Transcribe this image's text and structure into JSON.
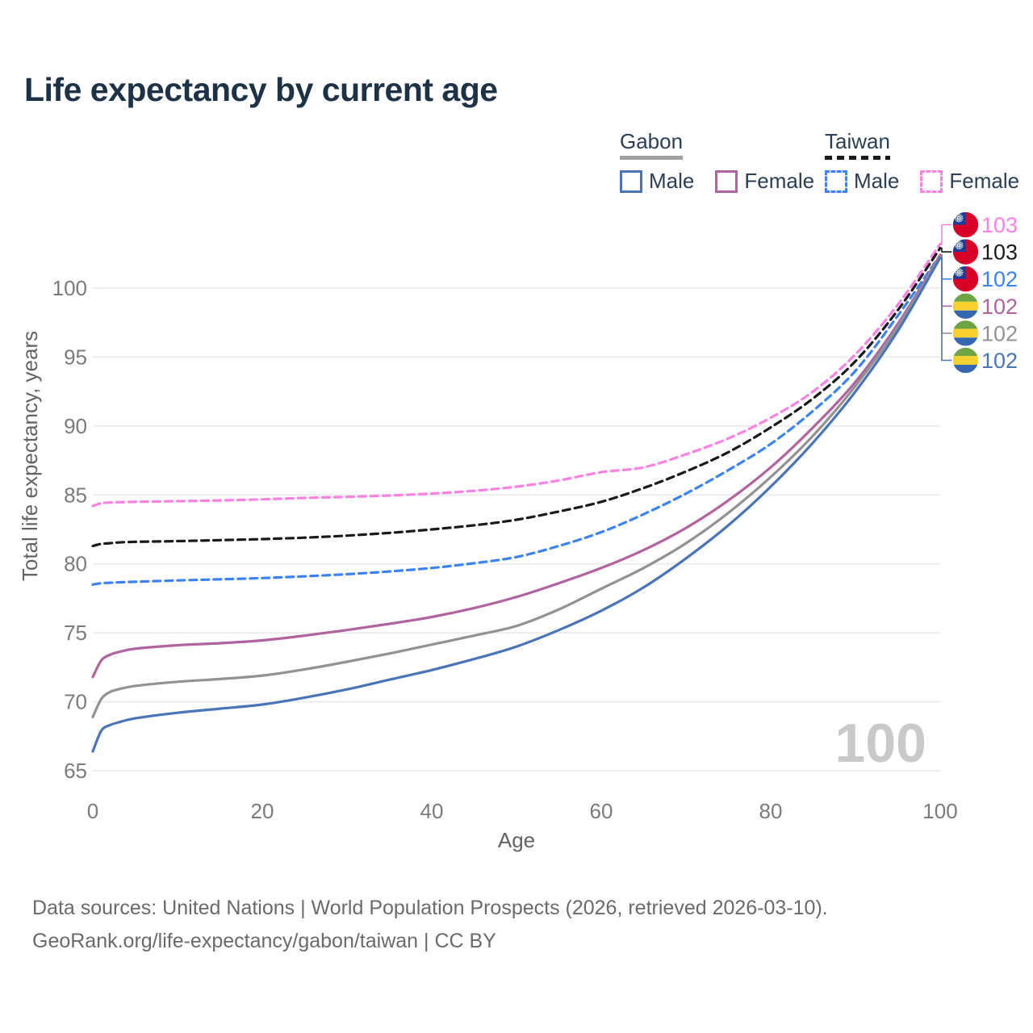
{
  "title": "Life expectancy by current age",
  "legend": {
    "groups": [
      {
        "id": "gabon",
        "label": "Gabon",
        "line_style": "solid",
        "line_color": "#a1a1a1",
        "items": [
          {
            "label": "Male",
            "color": "#4a74b8",
            "dashed": false
          },
          {
            "label": "Female",
            "color": "#b0639f",
            "dashed": false
          }
        ]
      },
      {
        "id": "taiwan",
        "label": "Taiwan",
        "line_style": "dashed",
        "line_color": "#1a1a1a",
        "items": [
          {
            "label": "Male",
            "color": "#3b82f6",
            "dashed": true
          },
          {
            "label": "Female",
            "color": "#fc81e2",
            "dashed": true
          }
        ]
      }
    ]
  },
  "watermark": "100",
  "footer": {
    "line1": "Data sources: United Nations | World Population Prospects (2026, retrieved 2026-03-10).",
    "line2": "GeoRank.org/life-expectancy/gabon/taiwan | CC BY"
  },
  "chart_data": {
    "type": "line",
    "title": "Life expectancy by current age",
    "xlabel": "Age",
    "ylabel": "Total life expectancy, years",
    "xlim": [
      0,
      100
    ],
    "ylim": [
      65,
      103.5
    ],
    "xticks": [
      0,
      20,
      40,
      60,
      80,
      100
    ],
    "yticks": [
      65,
      70,
      75,
      80,
      85,
      90,
      95,
      100
    ],
    "grid": "horizontal",
    "legend_position": "top-right",
    "x": [
      0,
      1,
      2,
      3,
      5,
      10,
      15,
      20,
      25,
      30,
      35,
      40,
      45,
      50,
      55,
      60,
      65,
      70,
      75,
      80,
      85,
      90,
      95,
      100
    ],
    "series": [
      {
        "id": "taiwan-female",
        "name": "Taiwan Female",
        "country": "Taiwan",
        "sex": "Female",
        "color": "#fc81e2",
        "dashed": true,
        "flag": "taiwan",
        "end_label": "103",
        "values": [
          84.2,
          84.4,
          84.45,
          84.47,
          84.5,
          84.55,
          84.6,
          84.68,
          84.78,
          84.86,
          84.96,
          85.1,
          85.3,
          85.6,
          86.05,
          86.65,
          87.0,
          87.95,
          89.1,
          90.6,
          92.5,
          95.2,
          98.8,
          103.2
        ]
      },
      {
        "id": "taiwan-both",
        "name": "Taiwan Both sexes",
        "country": "Taiwan",
        "sex": "Both",
        "color": "#1a1a1a",
        "dashed": true,
        "flag": "taiwan",
        "end_label": "103",
        "values": [
          81.3,
          81.45,
          81.5,
          81.55,
          81.6,
          81.65,
          81.72,
          81.8,
          81.9,
          82.05,
          82.25,
          82.5,
          82.8,
          83.2,
          83.8,
          84.5,
          85.5,
          86.7,
          88.1,
          89.9,
          92.0,
          94.7,
          98.4,
          102.9
        ]
      },
      {
        "id": "taiwan-male",
        "name": "Taiwan Male",
        "country": "Taiwan",
        "sex": "Male",
        "color": "#3b82f6",
        "dashed": true,
        "flag": "taiwan",
        "end_label": "102",
        "values": [
          78.5,
          78.6,
          78.63,
          78.66,
          78.7,
          78.8,
          78.88,
          78.97,
          79.1,
          79.25,
          79.45,
          79.7,
          80.05,
          80.5,
          81.3,
          82.3,
          83.6,
          85.1,
          86.8,
          88.7,
          91.1,
          94.0,
          98.0,
          102.4
        ]
      },
      {
        "id": "gabon-female",
        "name": "Gabon Female",
        "country": "Gabon",
        "sex": "Female",
        "color": "#b0639f",
        "dashed": false,
        "flag": "gabon",
        "end_label": "102",
        "values": [
          71.8,
          73.0,
          73.4,
          73.6,
          73.85,
          74.1,
          74.25,
          74.45,
          74.8,
          75.2,
          75.65,
          76.15,
          76.8,
          77.6,
          78.6,
          79.7,
          81.0,
          82.6,
          84.6,
          87.0,
          89.9,
          93.2,
          97.4,
          102.4
        ]
      },
      {
        "id": "gabon-both",
        "name": "Gabon Both sexes",
        "country": "Gabon",
        "sex": "Both",
        "color": "#929292",
        "dashed": false,
        "flag": "gabon",
        "end_label": "102",
        "values": [
          68.9,
          70.2,
          70.7,
          70.9,
          71.15,
          71.45,
          71.65,
          71.9,
          72.35,
          72.9,
          73.5,
          74.15,
          74.8,
          75.5,
          76.7,
          78.2,
          79.7,
          81.5,
          83.7,
          86.3,
          89.3,
          92.9,
          97.2,
          102.3
        ]
      },
      {
        "id": "gabon-male",
        "name": "Gabon Male",
        "country": "Gabon",
        "sex": "Male",
        "color": "#4a74b8",
        "dashed": false,
        "flag": "gabon",
        "end_label": "102",
        "values": [
          66.4,
          67.9,
          68.3,
          68.5,
          68.8,
          69.2,
          69.5,
          69.8,
          70.3,
          70.9,
          71.6,
          72.3,
          73.1,
          74.0,
          75.2,
          76.6,
          78.3,
          80.4,
          82.8,
          85.6,
          88.8,
          92.5,
          96.9,
          102.2
        ]
      }
    ],
    "flag_colors": {
      "taiwan": {
        "red": "#d80027",
        "blue": "#1b3d9e",
        "sun": "#ffffff"
      },
      "gabon": {
        "green": "#6da544",
        "yellow": "#f8d12e",
        "blue": "#3467af"
      }
    }
  }
}
